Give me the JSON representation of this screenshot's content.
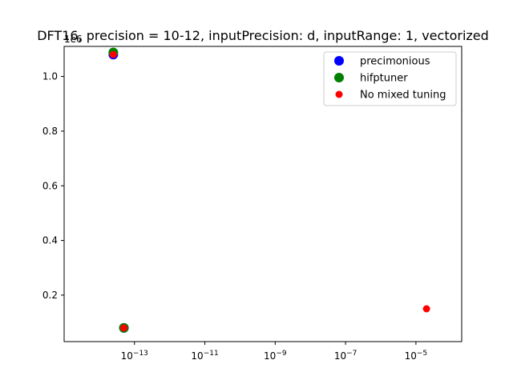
{
  "chart_data": {
    "type": "scatter",
    "title": "DFT16, precision = 10-12, inputPrecision: d, inputRange: 1, vectorized",
    "xlabel": "",
    "ylabel": "",
    "xscale": "log",
    "xlim": [
      1e-15,
      0.0002
    ],
    "ylim": [
      30000,
      1110000
    ],
    "y_offset_label": "1e6",
    "x_ticks": [
      {
        "value": 1e-13,
        "base": "10",
        "exp": "−13"
      },
      {
        "value": 1e-11,
        "base": "10",
        "exp": "−11"
      },
      {
        "value": 1e-09,
        "base": "10",
        "exp": "−9"
      },
      {
        "value": 1e-07,
        "base": "10",
        "exp": "−7"
      },
      {
        "value": 1e-05,
        "base": "10",
        "exp": "−5"
      }
    ],
    "y_ticks": [
      {
        "value": 200000,
        "label": "0.2"
      },
      {
        "value": 400000,
        "label": "0.4"
      },
      {
        "value": 600000,
        "label": "0.6"
      },
      {
        "value": 800000,
        "label": "0.8"
      },
      {
        "value": 1000000,
        "label": "1.0"
      }
    ],
    "grid": false,
    "legend_position": "top-right",
    "series": [
      {
        "name": "precimonious",
        "color": "#0000ff",
        "marker_size": "large",
        "points": [
          {
            "x": 2.5e-14,
            "y": 1080000
          },
          {
            "x": 5e-14,
            "y": 80000
          }
        ]
      },
      {
        "name": "hifptuner",
        "color": "#008000",
        "marker_size": "large",
        "points": [
          {
            "x": 2.5e-14,
            "y": 1088000
          },
          {
            "x": 5e-14,
            "y": 80000
          }
        ]
      },
      {
        "name": "No mixed tuning",
        "color": "#ff0000",
        "marker_size": "small",
        "points": [
          {
            "x": 2.5e-14,
            "y": 1080000
          },
          {
            "x": 5e-14,
            "y": 80000
          },
          {
            "x": 2e-05,
            "y": 150000
          }
        ]
      }
    ]
  }
}
